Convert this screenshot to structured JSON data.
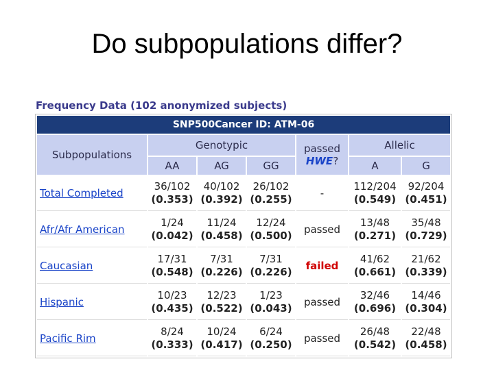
{
  "slide_title": "Do subpopulations differ?",
  "caption": "Frequency Data (102 anonymized subjects)",
  "table_id": "SNP500Cancer ID: ATM-06",
  "headers": {
    "subpopulations": "Subpopulations",
    "genotypic": "Genotypic",
    "passed": "passed",
    "hwe": "HWE",
    "question": "?",
    "allelic": "Allelic",
    "aa": "AA",
    "ag": "AG",
    "gg": "GG",
    "a": "A",
    "g": "G"
  },
  "rows": [
    {
      "name": "Total Completed",
      "aa": "36/102",
      "aa_p": "(0.353)",
      "ag": "40/102",
      "ag_p": "(0.392)",
      "gg": "26/102",
      "gg_p": "(0.255)",
      "hwe": "-",
      "a": "112/204",
      "a_p": "(0.549)",
      "g": "92/204",
      "g_p": "(0.451)"
    },
    {
      "name": "Afr/Afr American",
      "aa": "1/24",
      "aa_p": "(0.042)",
      "ag": "11/24",
      "ag_p": "(0.458)",
      "gg": "12/24",
      "gg_p": "(0.500)",
      "hwe": "passed",
      "a": "13/48",
      "a_p": "(0.271)",
      "g": "35/48",
      "g_p": "(0.729)"
    },
    {
      "name": "Caucasian",
      "aa": "17/31",
      "aa_p": "(0.548)",
      "ag": "7/31",
      "ag_p": "(0.226)",
      "gg": "7/31",
      "gg_p": "(0.226)",
      "hwe": "failed",
      "a": "41/62",
      "a_p": "(0.661)",
      "g": "21/62",
      "g_p": "(0.339)"
    },
    {
      "name": "Hispanic",
      "aa": "10/23",
      "aa_p": "(0.435)",
      "ag": "12/23",
      "ag_p": "(0.522)",
      "gg": "1/23",
      "gg_p": "(0.043)",
      "hwe": "passed",
      "a": "32/46",
      "a_p": "(0.696)",
      "g": "14/46",
      "g_p": "(0.304)"
    },
    {
      "name": "Pacific Rim",
      "aa": "8/24",
      "aa_p": "(0.333)",
      "ag": "10/24",
      "ag_p": "(0.417)",
      "gg": "6/24",
      "gg_p": "(0.250)",
      "hwe": "passed",
      "a": "26/48",
      "a_p": "(0.542)",
      "g": "22/48",
      "g_p": "(0.458)"
    }
  ],
  "colors": {
    "id_bar": "#1c3c7a",
    "header_bg": "#c8d0f0",
    "link": "#1a44c8",
    "failed": "#d00000"
  }
}
